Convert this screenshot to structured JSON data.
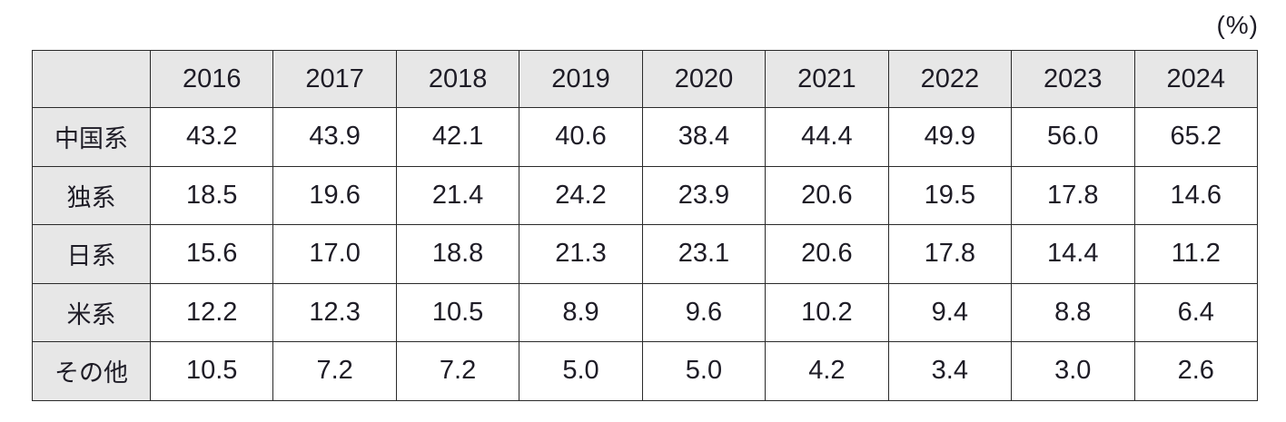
{
  "unit_label": "(%)",
  "chart_data": {
    "type": "table",
    "unit": "%",
    "categories": [
      "2016",
      "2017",
      "2018",
      "2019",
      "2020",
      "2021",
      "2022",
      "2023",
      "2024"
    ],
    "series": [
      {
        "name": "中国系",
        "values": [
          43.2,
          43.9,
          42.1,
          40.6,
          38.4,
          44.4,
          49.9,
          56.0,
          65.2
        ],
        "display": [
          "43.2",
          "43.9",
          "42.1",
          "40.6",
          "38.4",
          "44.4",
          "49.9",
          "56.0",
          "65.2"
        ]
      },
      {
        "name": "独系",
        "values": [
          18.5,
          19.6,
          21.4,
          24.2,
          23.9,
          20.6,
          19.5,
          17.8,
          14.6
        ],
        "display": [
          "18.5",
          "19.6",
          "21.4",
          "24.2",
          "23.9",
          "20.6",
          "19.5",
          "17.8",
          "14.6"
        ]
      },
      {
        "name": "日系",
        "values": [
          15.6,
          17.0,
          18.8,
          21.3,
          23.1,
          20.6,
          17.8,
          14.4,
          11.2
        ],
        "display": [
          "15.6",
          "17.0",
          "18.8",
          "21.3",
          "23.1",
          "20.6",
          "17.8",
          "14.4",
          "11.2"
        ]
      },
      {
        "name": "米系",
        "values": [
          12.2,
          12.3,
          10.5,
          8.9,
          9.6,
          10.2,
          9.4,
          8.8,
          6.4
        ],
        "display": [
          "12.2",
          "12.3",
          "10.5",
          "8.9",
          "9.6",
          "10.2",
          "9.4",
          "8.8",
          "6.4"
        ]
      },
      {
        "name": "その他",
        "values": [
          10.5,
          7.2,
          7.2,
          5.0,
          5.0,
          4.2,
          3.4,
          3.0,
          2.6
        ],
        "display": [
          "10.5",
          "7.2",
          "7.2",
          "5.0",
          "5.0",
          "4.2",
          "3.4",
          "3.0",
          "2.6"
        ]
      }
    ],
    "layout": {
      "header_background": "#e7e7e7",
      "row_label_background": "#e7e7e7",
      "cell_background": "#ffffff",
      "border_color": "#2a2a2a",
      "text_color": "#1e1c26",
      "grid": true
    }
  }
}
